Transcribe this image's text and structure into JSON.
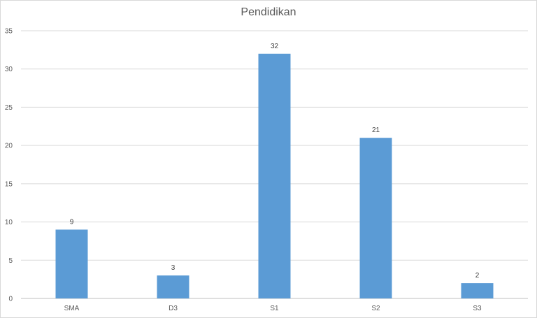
{
  "chart_data": {
    "type": "bar",
    "title": "Pendidikan",
    "categories": [
      "SMA",
      "D3",
      "S1",
      "S2",
      "S3"
    ],
    "values": [
      9,
      3,
      32,
      21,
      2
    ],
    "ylim": [
      0,
      35
    ],
    "yticks": [
      0,
      5,
      10,
      15,
      20,
      25,
      30,
      35
    ],
    "grid": true,
    "data_labels": true,
    "bar_color": "#5b9bd5"
  }
}
